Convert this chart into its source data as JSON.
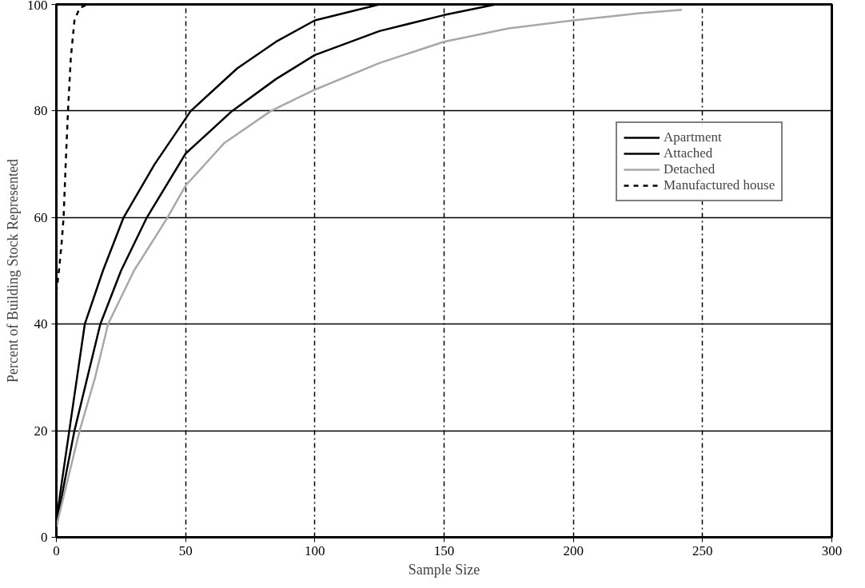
{
  "chart_data": {
    "type": "line",
    "xlabel": "Sample Size",
    "ylabel": "Percent of Building Stock Represented",
    "xlim": [
      0,
      300
    ],
    "ylim": [
      0,
      100
    ],
    "xticks": [
      0,
      50,
      100,
      150,
      200,
      250,
      300
    ],
    "yticks": [
      0,
      20,
      40,
      60,
      80,
      100
    ],
    "grid": true,
    "legend": "top right",
    "marker": "none",
    "series": [
      {
        "name": "Apartment",
        "color": "#000000",
        "line_style": "solid",
        "x": [
          0,
          3,
          7,
          12,
          17,
          25,
          35,
          50,
          68,
          85,
          100,
          125,
          150,
          170,
          200,
          250,
          300
        ],
        "values": [
          2,
          10,
          20,
          30,
          40,
          50,
          60,
          72,
          80,
          86,
          90.5,
          95,
          98,
          100,
          100,
          100,
          100
        ]
      },
      {
        "name": "Attached",
        "color": "#000000",
        "line_style": "solid",
        "x": [
          0,
          2,
          5,
          8,
          11,
          18,
          26,
          38,
          52,
          70,
          85,
          100,
          125,
          150,
          200,
          250,
          300
        ],
        "values": [
          3,
          10,
          20,
          30,
          40,
          50,
          60,
          70,
          80,
          88,
          93,
          97,
          100,
          100,
          100,
          100,
          100
        ]
      },
      {
        "name": "Detached",
        "color": "#a8a8a8",
        "line_style": "solid",
        "x": [
          0,
          4,
          9,
          15,
          20,
          30,
          43,
          50,
          65,
          83,
          100,
          125,
          150,
          175,
          200,
          225,
          242
        ],
        "values": [
          2,
          10,
          20,
          30,
          40,
          50,
          60,
          66,
          74,
          80,
          84,
          89,
          93,
          95.5,
          97,
          98.3,
          99
        ]
      },
      {
        "name": "Manufactured house",
        "color": "#000000",
        "line_style": "dashed",
        "x": [
          0,
          1,
          2,
          2.8,
          3.6,
          4.5,
          5.6,
          7,
          9,
          12
        ],
        "values": [
          46,
          50,
          55,
          60,
          70,
          80,
          90,
          97,
          99.3,
          100
        ]
      }
    ]
  }
}
